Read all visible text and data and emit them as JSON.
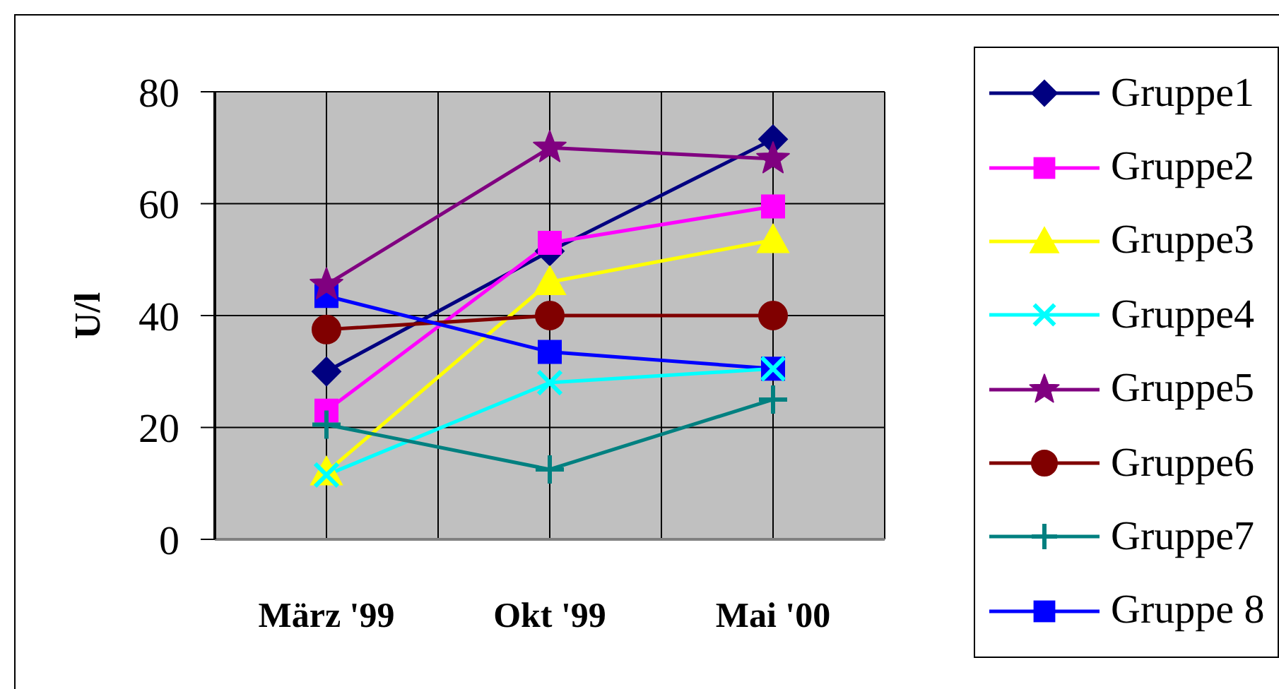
{
  "chart_data": {
    "type": "line",
    "ylabel": "U/l",
    "categories": [
      "März '99",
      "Okt '99",
      "Mai '00"
    ],
    "series": [
      {
        "name": "Gruppe1",
        "color": "#000080",
        "marker": "diamond",
        "values": [
          30,
          51.5,
          71.5
        ]
      },
      {
        "name": "Gruppe2",
        "color": "#ff00ff",
        "marker": "square",
        "values": [
          23,
          53,
          59.5
        ]
      },
      {
        "name": "Gruppe3",
        "color": "#ffff00",
        "marker": "triangle",
        "values": [
          12,
          46,
          53.5
        ]
      },
      {
        "name": "Gruppe4",
        "color": "#00ffff",
        "marker": "cross",
        "values": [
          11.5,
          28,
          30.5
        ]
      },
      {
        "name": "Gruppe5",
        "color": "#800080",
        "marker": "star",
        "values": [
          45.5,
          70,
          68
        ]
      },
      {
        "name": "Gruppe6",
        "color": "#800000",
        "marker": "circle",
        "values": [
          37.5,
          40,
          40
        ]
      },
      {
        "name": "Gruppe7",
        "color": "#008080",
        "marker": "plus",
        "values": [
          20.5,
          12.5,
          25
        ]
      },
      {
        "name": "Gruppe 8",
        "color": "#0000ff",
        "marker": "square",
        "values": [
          43.5,
          33.5,
          30.5
        ]
      }
    ],
    "ylim": [
      0,
      80
    ],
    "yticks": [
      0,
      20,
      40,
      60,
      80
    ],
    "grid": true,
    "legend": "right",
    "line_style": "solid"
  }
}
